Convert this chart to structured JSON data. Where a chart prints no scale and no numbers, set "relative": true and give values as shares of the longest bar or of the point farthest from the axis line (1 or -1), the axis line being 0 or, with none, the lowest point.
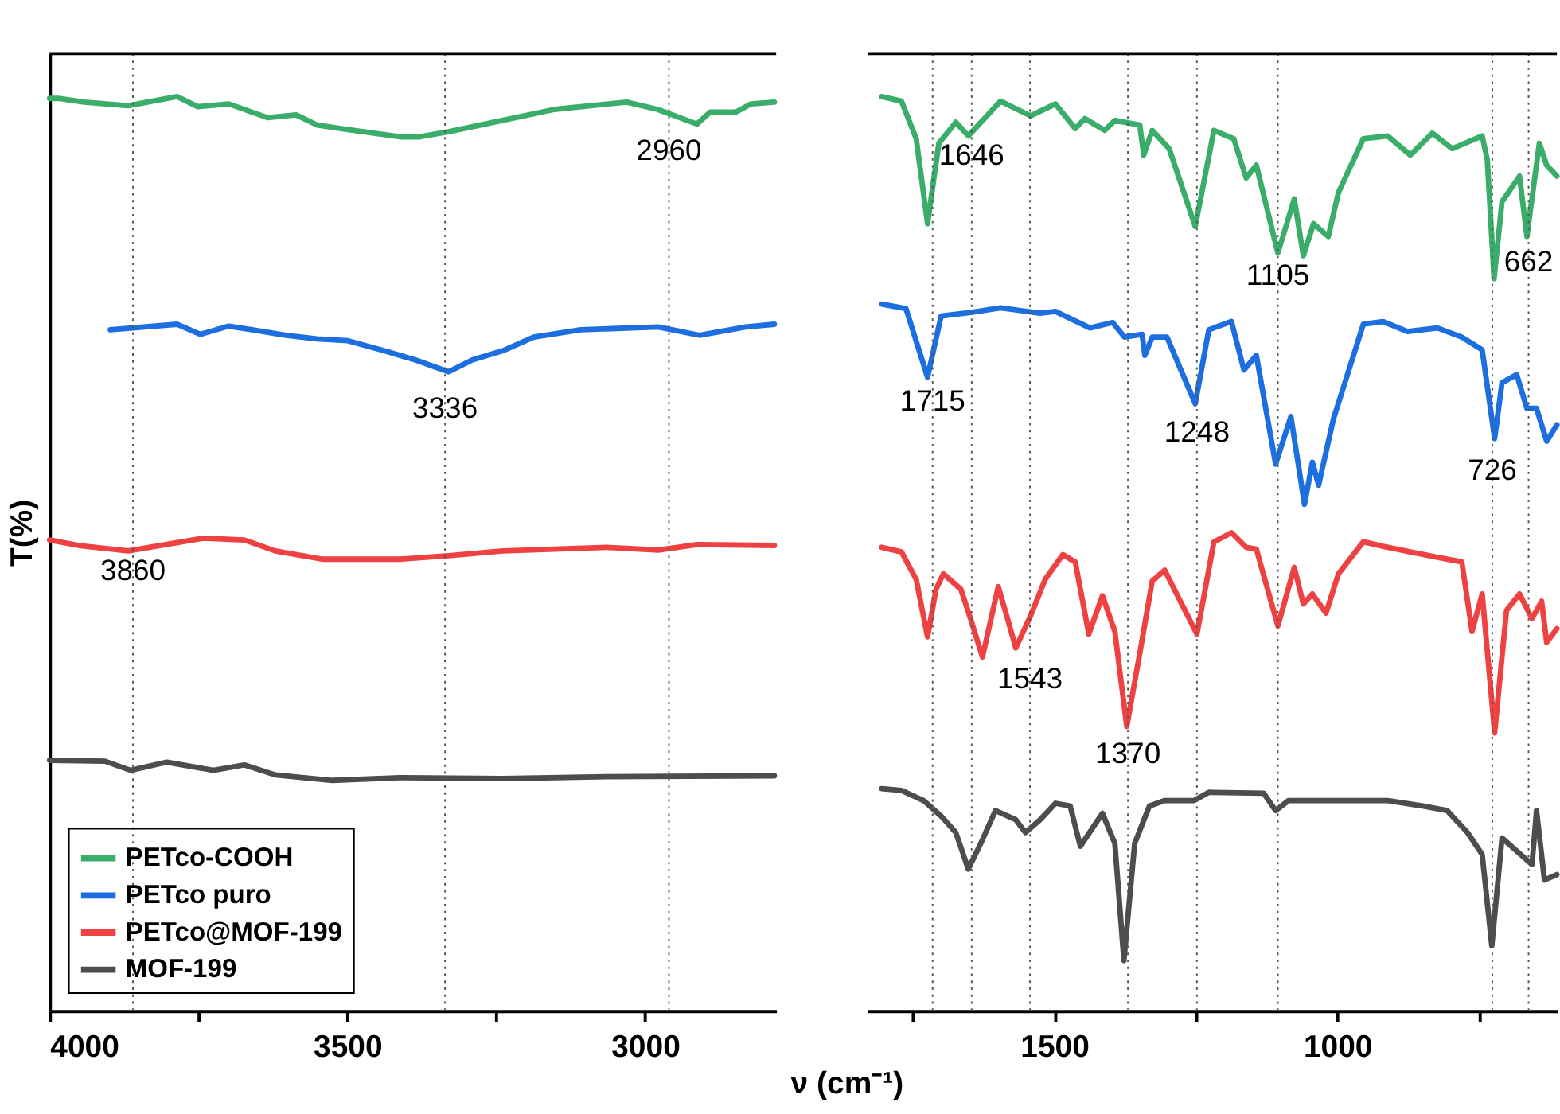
{
  "chart_data": [
    {
      "type": "line",
      "relative": true,
      "ylabel": "T(%)",
      "xlim": [
        4000,
        2780
      ],
      "xticks": [
        4000,
        {
          "value": 3750,
          "label": null
        },
        3500,
        {
          "value": 3250,
          "label": null
        },
        3000
      ],
      "legend": "bottom left",
      "series": [
        {
          "name": "PETco-COOH",
          "color": "#3aad6a",
          "x": [
            4000,
            3985,
            3942,
            3868,
            3786,
            3751,
            3699,
            3634,
            3586,
            3551,
            3499,
            3412,
            3378,
            3327,
            3240,
            3152,
            3031,
            2979,
            2913,
            2891,
            2848,
            2822,
            2783
          ],
          "values": [
            0.998,
            0.998,
            0.994,
            0.99,
            1.0,
            0.989,
            0.992,
            0.977,
            0.98,
            0.969,
            0.964,
            0.956,
            0.956,
            0.962,
            0.974,
            0.986,
            0.994,
            0.986,
            0.97,
            0.983,
            0.983,
            0.992,
            0.994
          ]
        },
        {
          "name": "PETco puro",
          "color": "#1d6fe0",
          "x": [
            3898,
            3786,
            3747,
            3699,
            3660,
            3603,
            3551,
            3499,
            3438,
            3386,
            3330,
            3290,
            3239,
            3187,
            3108,
            2978,
            2909,
            2831,
            2783
          ],
          "values": [
            0.745,
            0.751,
            0.74,
            0.749,
            0.745,
            0.739,
            0.735,
            0.733,
            0.722,
            0.712,
            0.699,
            0.712,
            0.722,
            0.737,
            0.745,
            0.748,
            0.739,
            0.748,
            0.751
          ]
        },
        {
          "name": "PETco@MOF-199",
          "color": "#ee4242",
          "x": [
            4000,
            3951,
            3868,
            3742,
            3673,
            3621,
            3542,
            3412,
            3326,
            3239,
            3065,
            2978,
            2913,
            2783
          ],
          "values": [
            0.515,
            0.509,
            0.503,
            0.517,
            0.515,
            0.503,
            0.494,
            0.494,
            0.498,
            0.503,
            0.507,
            0.504,
            0.51,
            0.509
          ]
        },
        {
          "name": "MOF-199",
          "color": "#4d4d4d",
          "x": [
            4000,
            3907,
            3864,
            3803,
            3725,
            3673,
            3621,
            3525,
            3412,
            3239,
            3065,
            2783
          ],
          "values": [
            0.274,
            0.273,
            0.263,
            0.272,
            0.263,
            0.269,
            0.258,
            0.252,
            0.255,
            0.254,
            0.256,
            0.257
          ]
        }
      ],
      "ref_lines": [
        {
          "axis": "x",
          "value": 3860
        },
        {
          "axis": "x",
          "value": 3336
        },
        {
          "axis": "x",
          "value": 2960
        }
      ],
      "annotations": [
        {
          "text": "2960",
          "x": 2960,
          "y": 0.941
        },
        {
          "text": "3336",
          "x": 3336,
          "y": 0.659
        },
        {
          "text": "3860",
          "x": 3860,
          "y": 0.481
        }
      ]
    },
    {
      "type": "line",
      "relative": true,
      "xlabel": "ν (cm⁻¹)",
      "xlim": [
        1830,
        612
      ],
      "xticks": [
        {
          "value": 1750,
          "label": null
        },
        1500,
        {
          "value": 1250,
          "label": null
        },
        1000,
        {
          "value": 750,
          "label": null
        }
      ],
      "series": [
        {
          "color": "#3aad6a",
          "x": [
            1805,
            1770,
            1744,
            1724,
            1704,
            1674,
            1652,
            1595,
            1542,
            1498,
            1463,
            1446,
            1411,
            1393,
            1349,
            1342,
            1327,
            1297,
            1251,
            1218,
            1183,
            1161,
            1143,
            1105,
            1076,
            1060,
            1042,
            1016,
            998,
            954,
            911,
            871,
            832,
            797,
            744,
            735,
            723,
            709,
            678,
            665,
            643,
            630,
            612
          ],
          "values": [
            1.0,
            0.995,
            0.954,
            0.861,
            0.949,
            0.972,
            0.957,
            0.995,
            0.979,
            0.992,
            0.965,
            0.976,
            0.963,
            0.974,
            0.969,
            0.936,
            0.963,
            0.943,
            0.858,
            0.963,
            0.954,
            0.911,
            0.925,
            0.829,
            0.888,
            0.826,
            0.861,
            0.847,
            0.895,
            0.954,
            0.957,
            0.936,
            0.96,
            0.943,
            0.957,
            0.931,
            0.801,
            0.885,
            0.913,
            0.847,
            0.949,
            0.925,
            0.913
          ]
        },
        {
          "color": "#1d6fe0",
          "x": [
            1805,
            1762,
            1724,
            1700,
            1647,
            1595,
            1525,
            1498,
            1437,
            1397,
            1376,
            1345,
            1340,
            1327,
            1301,
            1251,
            1227,
            1187,
            1165,
            1143,
            1109,
            1082,
            1058,
            1044,
            1033,
            1007,
            954,
            919,
            876,
            823,
            780,
            744,
            722,
            709,
            683,
            665,
            648,
            630,
            612
          ],
          "values": [
            0.773,
            0.768,
            0.693,
            0.76,
            0.764,
            0.769,
            0.763,
            0.765,
            0.747,
            0.753,
            0.737,
            0.74,
            0.717,
            0.737,
            0.737,
            0.664,
            0.745,
            0.754,
            0.701,
            0.717,
            0.598,
            0.65,
            0.554,
            0.6,
            0.575,
            0.647,
            0.751,
            0.754,
            0.743,
            0.747,
            0.737,
            0.723,
            0.626,
            0.687,
            0.696,
            0.659,
            0.659,
            0.623,
            0.641
          ]
        },
        {
          "color": "#ee4242",
          "x": [
            1805,
            1770,
            1744,
            1724,
            1709,
            1696,
            1665,
            1647,
            1627,
            1599,
            1568,
            1542,
            1516,
            1485,
            1463,
            1439,
            1415,
            1393,
            1372,
            1349,
            1327,
            1305,
            1248,
            1218,
            1187,
            1161,
            1143,
            1105,
            1076,
            1060,
            1044,
            1020,
            998,
            954,
            919,
            823,
            780,
            762,
            744,
            722,
            701,
            678,
            656,
            639,
            630,
            612
          ],
          "values": [
            0.507,
            0.502,
            0.472,
            0.409,
            0.461,
            0.478,
            0.461,
            0.427,
            0.387,
            0.464,
            0.397,
            0.432,
            0.472,
            0.499,
            0.491,
            0.412,
            0.454,
            0.415,
            0.311,
            0.391,
            0.47,
            0.482,
            0.412,
            0.513,
            0.523,
            0.507,
            0.505,
            0.421,
            0.485,
            0.445,
            0.456,
            0.435,
            0.478,
            0.513,
            0.508,
            0.496,
            0.491,
            0.415,
            0.456,
            0.304,
            0.438,
            0.456,
            0.429,
            0.448,
            0.403,
            0.418
          ]
        },
        {
          "color": "#4d4d4d",
          "x": [
            1805,
            1770,
            1731,
            1700,
            1674,
            1652,
            1630,
            1604,
            1568,
            1551,
            1525,
            1498,
            1472,
            1454,
            1415,
            1393,
            1377,
            1358,
            1332,
            1305,
            1253,
            1227,
            1130,
            1109,
            1086,
            998,
            911,
            849,
            806,
            770,
            744,
            727,
            709,
            656,
            648,
            634,
            612
          ],
          "values": [
            0.243,
            0.241,
            0.23,
            0.213,
            0.195,
            0.155,
            0.183,
            0.219,
            0.209,
            0.195,
            0.209,
            0.227,
            0.224,
            0.18,
            0.216,
            0.183,
            0.055,
            0.183,
            0.224,
            0.23,
            0.23,
            0.239,
            0.238,
            0.219,
            0.23,
            0.23,
            0.23,
            0.224,
            0.219,
            0.195,
            0.171,
            0.071,
            0.189,
            0.16,
            0.219,
            0.143,
            0.149
          ]
        }
      ],
      "ref_lines": [
        {
          "axis": "x",
          "value": 1715
        },
        {
          "axis": "x",
          "value": 1646
        },
        {
          "axis": "x",
          "value": 1543
        },
        {
          "axis": "x",
          "value": 1370
        },
        {
          "axis": "x",
          "value": 1248
        },
        {
          "axis": "x",
          "value": 1105
        },
        {
          "axis": "x",
          "value": 726
        },
        {
          "axis": "x",
          "value": 662
        }
      ],
      "annotations": [
        {
          "text": "1646",
          "x": 1646,
          "y": 0.936
        },
        {
          "text": "1105",
          "x": 1105,
          "y": 0.804
        },
        {
          "text": "662",
          "x": 662,
          "y": 0.819
        },
        {
          "text": "1715",
          "x": 1715,
          "y": 0.667
        },
        {
          "text": "1248",
          "x": 1248,
          "y": 0.633
        },
        {
          "text": "726",
          "x": 726,
          "y": 0.591
        },
        {
          "text": "1543",
          "x": 1543,
          "y": 0.363
        },
        {
          "text": "1370",
          "x": 1370,
          "y": 0.281
        }
      ]
    }
  ]
}
